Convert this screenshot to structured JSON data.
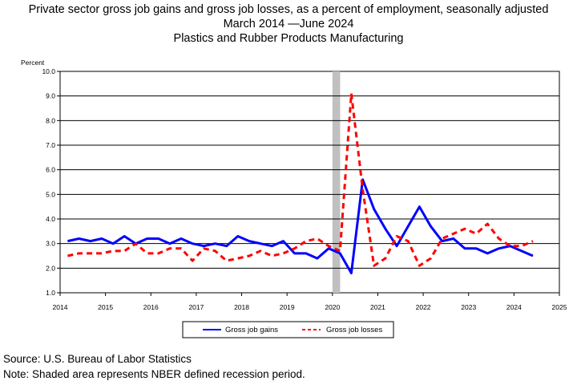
{
  "chart_data": {
    "type": "line",
    "title_lines": [
      "Private sector gross job gains and gross job losses, as a percent of employment, seasonally adjusted",
      "March 2014 —June 2024",
      "Plastics and Rubber Products Manufacturing"
    ],
    "ylabel": "Percent",
    "ylim": [
      1.0,
      10.0
    ],
    "xlim": [
      2014,
      2025
    ],
    "y_ticks": [
      "1.0",
      "2.0",
      "3.0",
      "4.0",
      "5.0",
      "6.0",
      "7.0",
      "8.0",
      "9.0",
      "10.0"
    ],
    "x_ticks": [
      "2014",
      "2015",
      "2016",
      "2017",
      "2018",
      "2019",
      "2020",
      "2021",
      "2022",
      "2023",
      "2024",
      "2025"
    ],
    "grid": "horizontal",
    "legend_position": "bottom",
    "recession_band": [
      2020.0,
      2020.17
    ],
    "x": [
      "2014-03",
      "2014-06",
      "2014-09",
      "2014-12",
      "2015-03",
      "2015-06",
      "2015-09",
      "2015-12",
      "2016-03",
      "2016-06",
      "2016-09",
      "2016-12",
      "2017-03",
      "2017-06",
      "2017-09",
      "2017-12",
      "2018-03",
      "2018-06",
      "2018-09",
      "2018-12",
      "2019-03",
      "2019-06",
      "2019-09",
      "2019-12",
      "2020-03",
      "2020-06",
      "2020-09",
      "2020-12",
      "2021-03",
      "2021-06",
      "2021-09",
      "2021-12",
      "2022-03",
      "2022-06",
      "2022-09",
      "2022-12",
      "2023-03",
      "2023-06",
      "2023-09",
      "2023-12",
      "2024-03",
      "2024-06"
    ],
    "series": [
      {
        "name": "Gross job gains",
        "color": "#0000ff",
        "dash": "solid",
        "values": [
          3.1,
          3.2,
          3.1,
          3.2,
          3.0,
          3.3,
          3.0,
          3.2,
          3.2,
          3.0,
          3.2,
          3.0,
          2.9,
          3.0,
          2.9,
          3.3,
          3.1,
          3.0,
          2.9,
          3.1,
          2.6,
          2.6,
          2.4,
          2.8,
          2.6,
          1.8,
          5.6,
          4.4,
          3.6,
          2.9,
          3.7,
          4.5,
          3.7,
          3.1,
          3.2,
          2.8,
          2.8,
          2.6,
          2.8,
          2.9,
          2.7,
          2.5
        ]
      },
      {
        "name": "Gross job losses",
        "color": "#ff0000",
        "dash": "dashed",
        "values": [
          2.5,
          2.6,
          2.6,
          2.6,
          2.7,
          2.7,
          3.0,
          2.6,
          2.6,
          2.8,
          2.8,
          2.3,
          2.8,
          2.7,
          2.3,
          2.4,
          2.5,
          2.7,
          2.5,
          2.6,
          2.8,
          3.1,
          3.2,
          2.9,
          2.7,
          9.1,
          5.2,
          2.1,
          2.4,
          3.3,
          3.1,
          2.1,
          2.4,
          3.2,
          3.4,
          3.6,
          3.4,
          3.8,
          3.2,
          2.9,
          2.9,
          3.1
        ]
      }
    ]
  },
  "footer": {
    "source": "Source: U.S. Bureau of Labor Statistics",
    "note": "Note: Shaded area represents NBER defined recession period."
  }
}
